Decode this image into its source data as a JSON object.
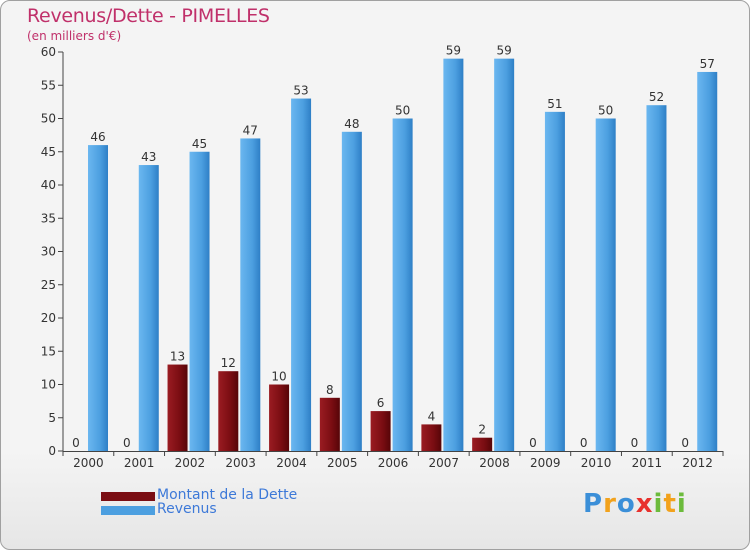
{
  "title": "Revenus/Dette - PIMELLES",
  "subtitle": "(en milliers d'€)",
  "colors": {
    "debt": "#7a0d12",
    "revenue": "#4c9fe0",
    "title": "#c0306a"
  },
  "legend": [
    {
      "label": "Montant de la Dette",
      "color": "#7a0d12"
    },
    {
      "label": "Revenus",
      "color": "#4c9fe0"
    }
  ],
  "logo": {
    "letters": [
      "P",
      "r",
      "o",
      "x",
      "i",
      "t",
      "i"
    ]
  },
  "chart_data": {
    "type": "bar",
    "categories": [
      "2000",
      "2001",
      "2002",
      "2003",
      "2004",
      "2005",
      "2006",
      "2007",
      "2008",
      "2009",
      "2010",
      "2011",
      "2012"
    ],
    "series": [
      {
        "name": "Montant de la Dette",
        "values": [
          0,
          0,
          13,
          12,
          10,
          8,
          6,
          4,
          2,
          0,
          0,
          0,
          0
        ]
      },
      {
        "name": "Revenus",
        "values": [
          46,
          43,
          45,
          47,
          53,
          48,
          50,
          59,
          59,
          51,
          50,
          52,
          57
        ]
      }
    ],
    "title": "Revenus/Dette - PIMELLES",
    "ylabel": "(en milliers d'€)",
    "xlabel": "",
    "ylim": [
      0,
      60
    ],
    "yticks": [
      0,
      5,
      10,
      15,
      20,
      25,
      30,
      35,
      40,
      45,
      50,
      55,
      60
    ],
    "grid": false,
    "legend_position": "bottom-left"
  }
}
